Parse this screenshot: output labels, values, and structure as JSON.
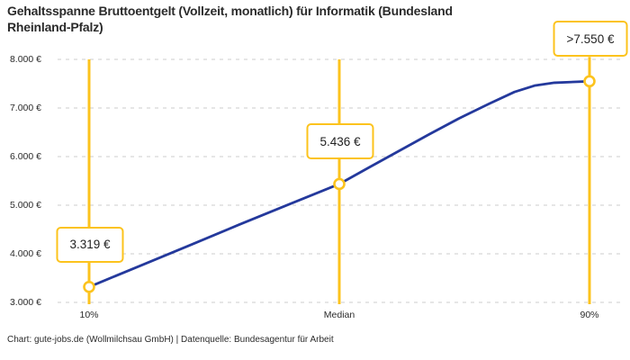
{
  "header": {
    "title": "Gehaltsspanne Bruttoentgelt (Vollzeit, monatlich) für Informatik (Bundesland\nRheinland-Pfalz)"
  },
  "footer": {
    "credit": "Chart: gute-jobs.de (Wollmilchsau GmbH) | Datenquelle: Bundesagentur für Arbeit"
  },
  "chart_data": {
    "type": "line",
    "title": "Gehaltsspanne Bruttoentgelt (Vollzeit, monatlich) für Informatik (Bundesland Rheinland-Pfalz)",
    "xlabel": "",
    "ylabel": "",
    "ylim": [
      3000,
      8000
    ],
    "currency": "EUR",
    "grid": "horizontal-dashed",
    "legend": "none",
    "y_ticks": [
      {
        "value": 8000,
        "label": "8.000 €"
      },
      {
        "value": 7000,
        "label": "7.000 €"
      },
      {
        "value": 6000,
        "label": "6.000 €"
      },
      {
        "value": 5000,
        "label": "5.000 €"
      },
      {
        "value": 4000,
        "label": "4.000 €"
      },
      {
        "value": 3000,
        "label": "3.000 €"
      }
    ],
    "percentiles": [
      {
        "x_frac": 0.0,
        "tick": "10%",
        "value": 3319,
        "display": "3.319 €"
      },
      {
        "x_frac": 0.5,
        "tick": "Median",
        "value": 5436,
        "display": "5.436 €"
      },
      {
        "x_frac": 1.0,
        "tick": "90%",
        "value": 7550,
        "display": ">7.550 €"
      }
    ],
    "curve": [
      [
        0.0,
        3319
      ],
      [
        0.1,
        3745
      ],
      [
        0.2,
        4170
      ],
      [
        0.3,
        4600
      ],
      [
        0.4,
        5020
      ],
      [
        0.5,
        5436
      ],
      [
        0.56,
        5780
      ],
      [
        0.62,
        6120
      ],
      [
        0.68,
        6460
      ],
      [
        0.74,
        6790
      ],
      [
        0.8,
        7090
      ],
      [
        0.85,
        7330
      ],
      [
        0.89,
        7460
      ],
      [
        0.93,
        7520
      ],
      [
        1.0,
        7550
      ]
    ],
    "colors": {
      "line": "#24399c",
      "accent": "#fcc31d",
      "grid": "#cccccc",
      "text": "#2b2b2b"
    }
  }
}
